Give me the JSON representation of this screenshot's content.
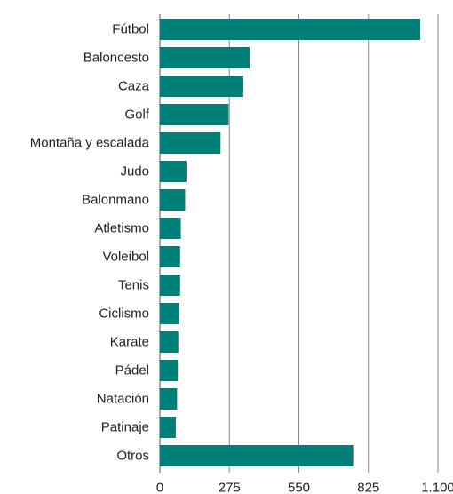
{
  "chart_data": {
    "type": "bar",
    "orientation": "horizontal",
    "categories": [
      "Fútbol",
      "Baloncesto",
      "Caza",
      "Golf",
      "Montaña y escalada",
      "Judo",
      "Balonmano",
      "Atletismo",
      "Voleibol",
      "Tenis",
      "Ciclismo",
      "Karate",
      "Pádel",
      "Natación",
      "Patinaje",
      "Otros"
    ],
    "values": [
      1030,
      355,
      330,
      272,
      240,
      105,
      100,
      83,
      80,
      80,
      77,
      73,
      71,
      68,
      63,
      765
    ],
    "xlim": [
      0,
      1100
    ],
    "xticks": [
      0,
      275,
      550,
      825,
      1100
    ],
    "xtick_labels": [
      "0",
      "275",
      "550",
      "825",
      "1.100"
    ],
    "grid": "vertical",
    "bar_color": "#007f79",
    "title": "",
    "xlabel": "",
    "ylabel": ""
  }
}
